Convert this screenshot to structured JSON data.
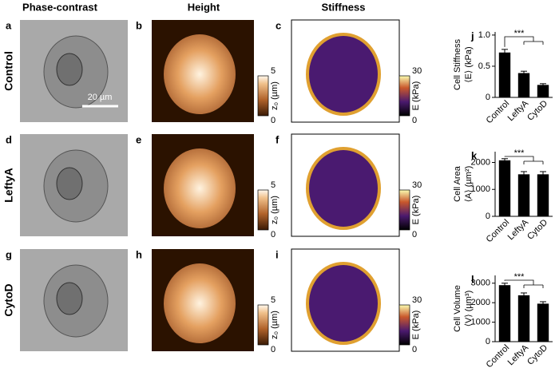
{
  "figure": {
    "columns": [
      "Phase-contrast",
      "Height",
      "Stiffness"
    ],
    "rows": [
      "Control",
      "LeftyA",
      "CytoD"
    ],
    "panel_letters": [
      [
        "a",
        "b",
        "c"
      ],
      [
        "d",
        "e",
        "f"
      ],
      [
        "g",
        "h",
        "i"
      ]
    ],
    "scale_bar": "20 µm",
    "colorbars": [
      {
        "label": "z₀ (µm)",
        "max": 5,
        "min": 0
      },
      {
        "label": "E (kPa)",
        "max": 30,
        "min": 0
      }
    ]
  },
  "chart_data": [
    {
      "type": "bar",
      "panel": "j",
      "ylabel": [
        "Cell Stiffness",
        "⟨E⟩ (kPa)"
      ],
      "categories": [
        "Control",
        "LeftyA",
        "CytoD"
      ],
      "values": [
        0.72,
        0.39,
        0.2
      ],
      "errors": [
        0.05,
        0.03,
        0.02
      ],
      "color": "#000000",
      "ylim": [
        0,
        1.05
      ],
      "yticks": [
        0,
        0.5,
        {
          "value": 1,
          "label": "1.0"
        }
      ],
      "annotation": "***"
    },
    {
      "type": "bar",
      "panel": "k",
      "ylabel": [
        "Cell Area",
        "⟨A⟩ (µm²)"
      ],
      "categories": [
        "Control",
        "LeftyA",
        "CytoD"
      ],
      "values": [
        2080,
        1560,
        1560
      ],
      "errors": [
        60,
        100,
        100
      ],
      "color": "#000000",
      "ylim": [
        0,
        2400
      ],
      "yticks": [
        0,
        1000,
        2000
      ],
      "annotation": "***"
    },
    {
      "type": "bar",
      "panel": "l",
      "ylabel": [
        "Cell Volume",
        "⟨V⟩ (µm³)"
      ],
      "categories": [
        "Control",
        "LeftyA",
        "CytoD"
      ],
      "values": [
        2900,
        2380,
        1950
      ],
      "errors": [
        100,
        120,
        100
      ],
      "color": "#000000",
      "ylim": [
        0,
        3400
      ],
      "yticks": [
        0,
        1000,
        2000,
        3000
      ],
      "annotation": "***"
    }
  ]
}
